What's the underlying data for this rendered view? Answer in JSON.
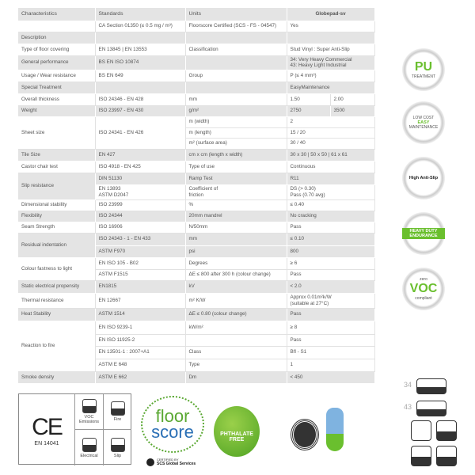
{
  "table": {
    "rows": [
      {
        "bg": "g",
        "cells": [
          {
            "t": "Characteristics"
          },
          {
            "t": "Standards"
          },
          {
            "t": "Units"
          },
          {
            "t": "Globepad-sv",
            "cs": 2,
            "center": true
          }
        ]
      },
      {
        "bg": "w",
        "cells": [
          {
            "t": ""
          },
          {
            "t": "CA Section 01350 (≤ 0.5 mg / m³)"
          },
          {
            "t": "Floorscore Certified (SCS - FS - 04547)"
          },
          {
            "t": "Yes",
            "cs": 2
          }
        ]
      },
      {
        "bg": "g",
        "cells": [
          {
            "t": "Description"
          },
          {
            "t": ""
          },
          {
            "t": ""
          },
          {
            "t": "",
            "cs": 2
          }
        ]
      },
      {
        "bg": "w",
        "cells": [
          {
            "t": "Type of floor covering"
          },
          {
            "t": "EN 13845 | EN 13553"
          },
          {
            "t": "Classification"
          },
          {
            "t": "Stud Vinyl : Super Anti-Slip",
            "cs": 2
          }
        ]
      },
      {
        "bg": "g",
        "cells": [
          {
            "t": "General performance"
          },
          {
            "t": "BS EN ISO 10874"
          },
          {
            "t": ""
          },
          {
            "t": "34: Very Heavy Commercial\n43: Heavy Light Industrial",
            "cs": 2
          }
        ]
      },
      {
        "bg": "w",
        "cells": [
          {
            "t": "Usage / Wear resistance"
          },
          {
            "t": "BS EN 649"
          },
          {
            "t": "Group"
          },
          {
            "t": "P (≤ 4 mm³)",
            "cs": 2
          }
        ]
      },
      {
        "bg": "g",
        "cells": [
          {
            "t": "Special Treatment"
          },
          {
            "t": ""
          },
          {
            "t": ""
          },
          {
            "t": "EasyMaintenance",
            "cs": 2
          }
        ]
      },
      {
        "bg": "w",
        "cells": [
          {
            "t": "Overall thickness"
          },
          {
            "t": "ISO 24346 - EN 428"
          },
          {
            "t": "mm"
          },
          {
            "t": "1.50"
          },
          {
            "t": "2.00"
          }
        ]
      },
      {
        "bg": "g",
        "cells": [
          {
            "t": "Weight"
          },
          {
            "t": "ISO 23997 - EN 430"
          },
          {
            "t": "g/m²"
          },
          {
            "t": "2750"
          },
          {
            "t": "3500"
          }
        ]
      },
      {
        "bg": "w",
        "cells": [
          {
            "t": "Sheet size",
            "rs": 3
          },
          {
            "t": "ISO 24341 - EN 426",
            "rs": 3
          },
          {
            "t": "m (width)"
          },
          {
            "t": "2",
            "cs": 2
          }
        ]
      },
      {
        "bg": "w",
        "cells": [
          {
            "t": "m (length)"
          },
          {
            "t": "15 / 20",
            "cs": 2
          }
        ]
      },
      {
        "bg": "w",
        "cells": [
          {
            "t": "m² (surface area)"
          },
          {
            "t": "30 / 40",
            "cs": 2
          }
        ]
      },
      {
        "bg": "g",
        "cells": [
          {
            "t": "Tile Size"
          },
          {
            "t": "EN 427"
          },
          {
            "t": "cm x cm (length x width)"
          },
          {
            "t": "30 x 30 | 50 x 50 | 61 x 61",
            "cs": 2
          }
        ]
      },
      {
        "bg": "w",
        "cells": [
          {
            "t": "Castor chair test"
          },
          {
            "t": "ISO 4918 - EN 425"
          },
          {
            "t": "Type of use"
          },
          {
            "t": "Continuous",
            "cs": 2
          }
        ]
      },
      {
        "bg": "g",
        "cells": [
          {
            "t": "Slip resistance",
            "rs": 2
          },
          {
            "t": "DIN 51130"
          },
          {
            "t": "Ramp Test"
          },
          {
            "t": "R11",
            "cs": 2
          }
        ]
      },
      {
        "bg": "w",
        "cells": [
          {
            "t": "EN 13893\nASTM D2047"
          },
          {
            "t": "Coefficient of\nfriction"
          },
          {
            "t": "DS (> 0.30)\nPass (0.70 avg)",
            "cs": 2
          }
        ]
      },
      {
        "bg": "w",
        "cells": [
          {
            "t": "Dimensional stability"
          },
          {
            "t": "ISO 23999"
          },
          {
            "t": "%"
          },
          {
            "t": "≤ 0.40",
            "cs": 2
          }
        ]
      },
      {
        "bg": "g",
        "cells": [
          {
            "t": "Flexibility"
          },
          {
            "t": "ISO 24344"
          },
          {
            "t": "20mm mandrel"
          },
          {
            "t": "No cracking",
            "cs": 2
          }
        ]
      },
      {
        "bg": "w",
        "cells": [
          {
            "t": "Seam Strength"
          },
          {
            "t": "ISO 16906"
          },
          {
            "t": "N/50mm"
          },
          {
            "t": "Pass",
            "cs": 2
          }
        ]
      },
      {
        "bg": "g",
        "cells": [
          {
            "t": "Residual indentation",
            "rs": 2
          },
          {
            "t": "ISO 24343 - 1 - EN 433"
          },
          {
            "t": "mm"
          },
          {
            "t": "≤ 0.10",
            "cs": 2
          }
        ]
      },
      {
        "bg": "g",
        "cells": [
          {
            "t": "ASTM F970"
          },
          {
            "t": "psi"
          },
          {
            "t": "800",
            "cs": 2
          }
        ]
      },
      {
        "bg": "w",
        "cells": [
          {
            "t": "Colour fastness to light",
            "rs": 2
          },
          {
            "t": "EN ISO 105 - B02"
          },
          {
            "t": "Degrees"
          },
          {
            "t": "≥ 6",
            "cs": 2
          }
        ]
      },
      {
        "bg": "w",
        "cells": [
          {
            "t": "ASTM F1515"
          },
          {
            "t": "ΔE ≤ 800 after 300 h (colour change)"
          },
          {
            "t": "Pass",
            "cs": 2
          }
        ]
      },
      {
        "bg": "g",
        "cells": [
          {
            "t": "Static electrical propensity"
          },
          {
            "t": "EN1815"
          },
          {
            "t": "kV"
          },
          {
            "t": "< 2.0",
            "cs": 2
          }
        ]
      },
      {
        "bg": "w",
        "cells": [
          {
            "t": "Thermal resistance"
          },
          {
            "t": "EN 12667"
          },
          {
            "t": "m² K/W"
          },
          {
            "t": "Approx 0.01m²k/W\n(suitable at 27°C)",
            "cs": 2
          }
        ]
      },
      {
        "bg": "g",
        "cells": [
          {
            "t": "Heat Stability"
          },
          {
            "t": "ASTM 1514"
          },
          {
            "t": "ΔE ≤ 0.80 (colour change)"
          },
          {
            "t": "Pass",
            "cs": 2
          }
        ]
      },
      {
        "bg": "w",
        "cells": [
          {
            "t": "Reaction to fire",
            "rs": 4
          },
          {
            "t": "EN ISO 9239-1"
          },
          {
            "t": "kW/m²"
          },
          {
            "t": "≥ 8",
            "cs": 2
          }
        ]
      },
      {
        "bg": "w",
        "cells": [
          {
            "t": "EN ISO 11925-2"
          },
          {
            "t": ""
          },
          {
            "t": "Pass",
            "cs": 2
          }
        ]
      },
      {
        "bg": "w",
        "cells": [
          {
            "t": "EN 13501-1 : 2007+A1"
          },
          {
            "t": "Class"
          },
          {
            "t": "Bfl - S1",
            "cs": 2
          }
        ]
      },
      {
        "bg": "w",
        "cells": [
          {
            "t": "ASTM E 648"
          },
          {
            "t": "Type"
          },
          {
            "t": "1",
            "cs": 2
          }
        ]
      },
      {
        "bg": "g",
        "cells": [
          {
            "t": "Smoke density"
          },
          {
            "t": "ASTM E 662"
          },
          {
            "t": "Dm"
          },
          {
            "t": "< 450",
            "cs": 2
          }
        ]
      }
    ]
  },
  "badges": [
    {
      "main": "PU",
      "sub": "TREATMENT"
    },
    {
      "top": "LOW COST",
      "main": "EASY",
      "sub": "MAINTENANCE"
    },
    {
      "main": "High Anti-Slip"
    },
    {
      "main": "HEAVY DUTY ENDURANCE"
    },
    {
      "top": "zero",
      "main": "VOC",
      "sub": "compliant"
    }
  ],
  "ce": {
    "mark": "CE",
    "standard": "EN 14041",
    "voc": "VOC\nEmissions",
    "fire": "Fire",
    "fire_class": "Bfl-s1",
    "electrical": "Electrical",
    "slip": "Slip",
    "slip_class": "DS"
  },
  "floorscore": {
    "line1": "floor",
    "line2": "score",
    "certified": "CERTIFIED BY",
    "scs": "SCS Global Services"
  },
  "phthalate": "PHTHALATE\nFREE",
  "classes": [
    "34",
    "43"
  ],
  "colors": {
    "green": "#6abf2e",
    "table_gray": "#e4e4e4",
    "text": "#555555",
    "floorscore_green": "#5aa832",
    "floorscore_blue": "#2a6fb5"
  }
}
